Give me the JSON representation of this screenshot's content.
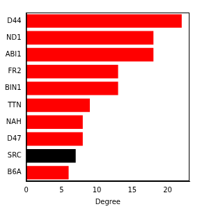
{
  "chart_data": {
    "type": "bar",
    "orientation": "horizontal",
    "x_label": "Degree",
    "categories": [
      "D44",
      "ND1",
      "ABI1",
      "FR2",
      "BIN1",
      "TTN",
      "NAH",
      "D47",
      "SRC",
      "B6A"
    ],
    "values": [
      22,
      18,
      18,
      13,
      13,
      9,
      8,
      8,
      7,
      6
    ],
    "colors": [
      "#ff0000",
      "#ff0000",
      "#ff0000",
      "#ff0000",
      "#ff0000",
      "#ff0000",
      "#ff0000",
      "#ff0000",
      "#000000",
      "#ff0000"
    ],
    "xlim": [
      0,
      23.1
    ],
    "xticks": [
      0,
      5,
      10,
      15,
      20
    ],
    "grid": false
  }
}
